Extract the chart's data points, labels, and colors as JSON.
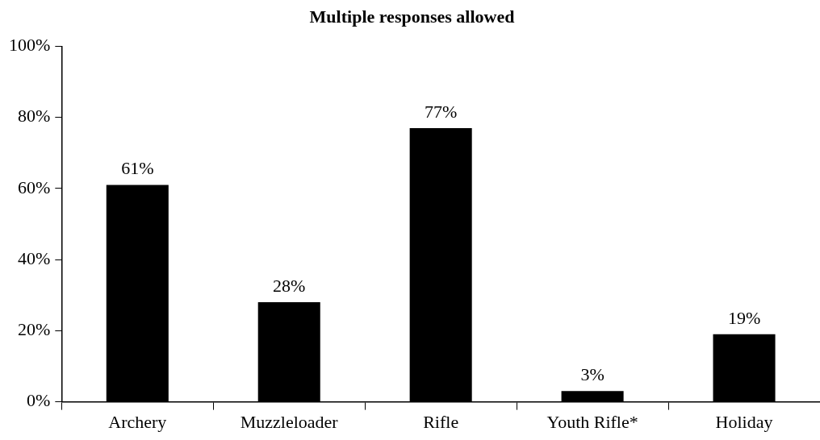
{
  "chart_data": {
    "type": "bar",
    "title": "Multiple responses allowed",
    "categories": [
      "Archery",
      "Muzzleloader",
      "Rifle",
      "Youth Rifle*",
      "Holiday"
    ],
    "values": [
      61,
      28,
      77,
      3,
      19
    ],
    "color": "#000000",
    "ylim": [
      0,
      100
    ],
    "yticks": [
      {
        "value": 0,
        "label": "0%"
      },
      {
        "value": 20,
        "label": "20%"
      },
      {
        "value": 40,
        "label": "40%"
      },
      {
        "value": 60,
        "label": "60%"
      },
      {
        "value": 80,
        "label": "80%"
      },
      {
        "value": 100,
        "label": "100%"
      }
    ],
    "value_labels": [
      "61%",
      "28%",
      "77%",
      "3%",
      "19%"
    ],
    "grid": false,
    "legend": false
  }
}
